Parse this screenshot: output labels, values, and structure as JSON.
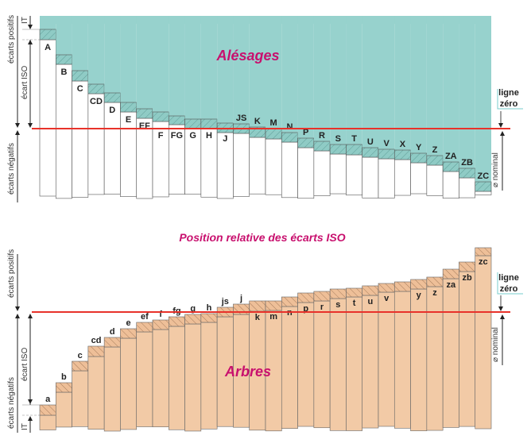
{
  "colors": {
    "bore_fill": "#97d2cd",
    "shaft_fill": "#f2caa6",
    "zero_line": "#e8322a",
    "title": "#c8106e"
  },
  "top": {
    "title": "Alésages",
    "labels": [
      "A",
      "B",
      "C",
      "CD",
      "D",
      "E",
      "EF",
      "F",
      "FG",
      "G",
      "H",
      "J",
      "JS",
      "K",
      "M",
      "N",
      "P",
      "R",
      "S",
      "T",
      "U",
      "V",
      "X",
      "Y",
      "Z",
      "ZA",
      "ZB",
      "ZC"
    ],
    "left_axis": {
      "positive": "écarts positifs",
      "iso": "écart ISO",
      "negative": "écarts négatifs",
      "it": "IT"
    },
    "zero_label": [
      "ligne",
      "zéro"
    ],
    "nominal": "⌀ nominal"
  },
  "middle_title": "Position relative des écarts ISO",
  "bottom": {
    "title": "Arbres",
    "labels": [
      "a",
      "b",
      "c",
      "cd",
      "d",
      "e",
      "ef",
      "f",
      "fg",
      "g",
      "h",
      "js",
      "j",
      "k",
      "m",
      "n",
      "p",
      "r",
      "s",
      "t",
      "u",
      "v",
      "",
      "y",
      "z",
      "za",
      "zb",
      "zc"
    ],
    "left_axis": {
      "positive": "écarts positifs",
      "iso": "écart ISO",
      "negative": "écarts négatifs",
      "it": "IT"
    },
    "zero_label": [
      "ligne",
      "zéro"
    ],
    "nominal": "⌀ nominal"
  }
}
